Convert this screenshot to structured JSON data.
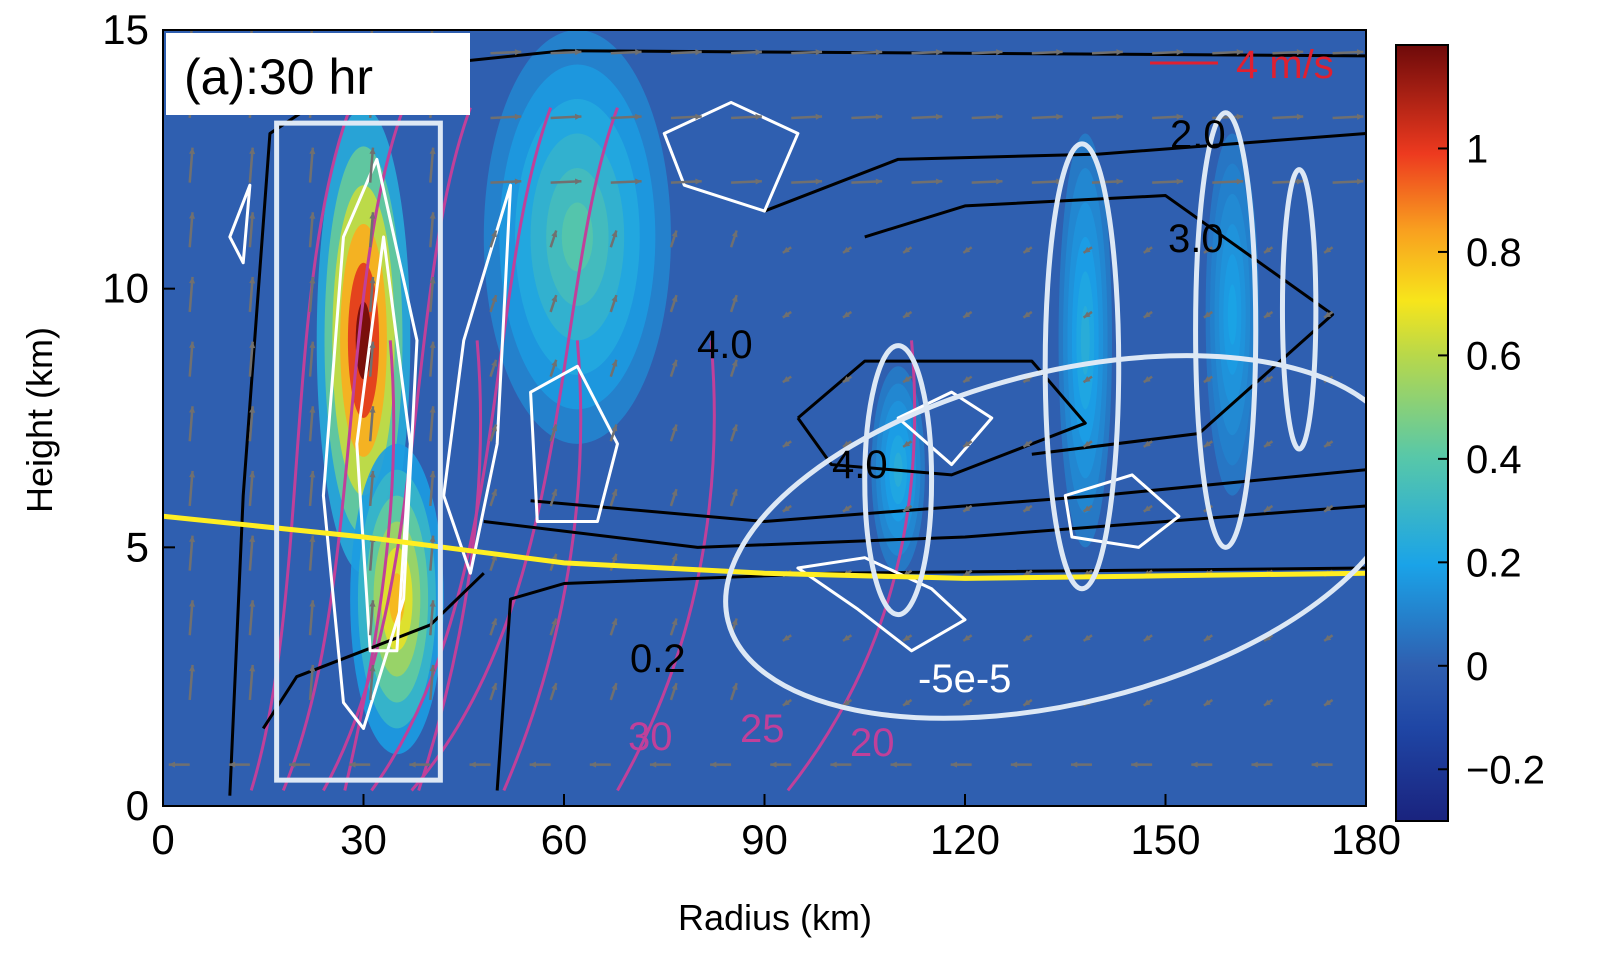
{
  "chart_data": {
    "type": "heatmap",
    "panel_label": "(a):30 hr",
    "xlabel": "Radius (km)",
    "ylabel": "Height (km)",
    "xlim": [
      0,
      180
    ],
    "ylim": [
      0,
      15
    ],
    "xticks": [
      0,
      30,
      60,
      90,
      120,
      150,
      180
    ],
    "yticks": [
      0,
      5,
      10,
      15
    ],
    "colorbar": {
      "range": [
        -0.3,
        1.2
      ],
      "ticks": [
        -0.2,
        0,
        0.2,
        0.4,
        0.6,
        0.8,
        1
      ],
      "tick_labels": [
        "−0.2",
        "0",
        "0.2",
        "0.4",
        "0.6",
        "0.8",
        "1"
      ],
      "colormap": "jet"
    },
    "field_maxima": [
      {
        "x": 30,
        "y": 9,
        "value": 1.2
      },
      {
        "x": 35,
        "y": 4,
        "value": 0.8
      },
      {
        "x": 62,
        "y": 11,
        "value": 0.4
      },
      {
        "x": 110,
        "y": 6.5,
        "value": 0.25
      },
      {
        "x": 138,
        "y": 9,
        "value": 0.25
      },
      {
        "x": 160,
        "y": 9.5,
        "value": 0.2
      }
    ],
    "vector_scale_label": "4 m/s",
    "melting_level": {
      "color": "#ffee22",
      "x": [
        0,
        30,
        60,
        90,
        120,
        150,
        180
      ],
      "y": [
        5.6,
        5.2,
        4.7,
        4.5,
        4.4,
        4.45,
        4.5
      ]
    },
    "contour_labels": {
      "black": [
        "2.0",
        "3.0",
        "4.0",
        "4.0",
        "0.2"
      ],
      "magenta": [
        "30",
        "25",
        "20"
      ],
      "white": [
        "-5e-5"
      ]
    },
    "highlight_box": {
      "x": [
        17,
        41.5
      ],
      "y": [
        0.5,
        13.2
      ]
    },
    "highlight_ellipses": [
      {
        "cx": 110,
        "cy": 6.3,
        "rx": 5,
        "ry": 2.6
      },
      {
        "cx": 137.5,
        "cy": 8.5,
        "rx": 5.5,
        "ry": 4.3
      },
      {
        "cx": 159,
        "cy": 9.2,
        "rx": 4.5,
        "ry": 4.2
      },
      {
        "cx": 170,
        "cy": 9.6,
        "rx": 2.5,
        "ry": 2.7
      }
    ],
    "highlight_ellipse_oblique": {
      "cx": 135,
      "cy": 5.2,
      "rx": 52,
      "ry": 3.2,
      "angle_deg": -14
    },
    "colors": {
      "background": "#2f5fb0",
      "black_contours": "#000000",
      "magenta_contours": "#c0409a",
      "white_contours": "#ffffff",
      "vectors": "#707070",
      "highlight": "#dde8f5",
      "vector_scale": "#e02030"
    }
  }
}
